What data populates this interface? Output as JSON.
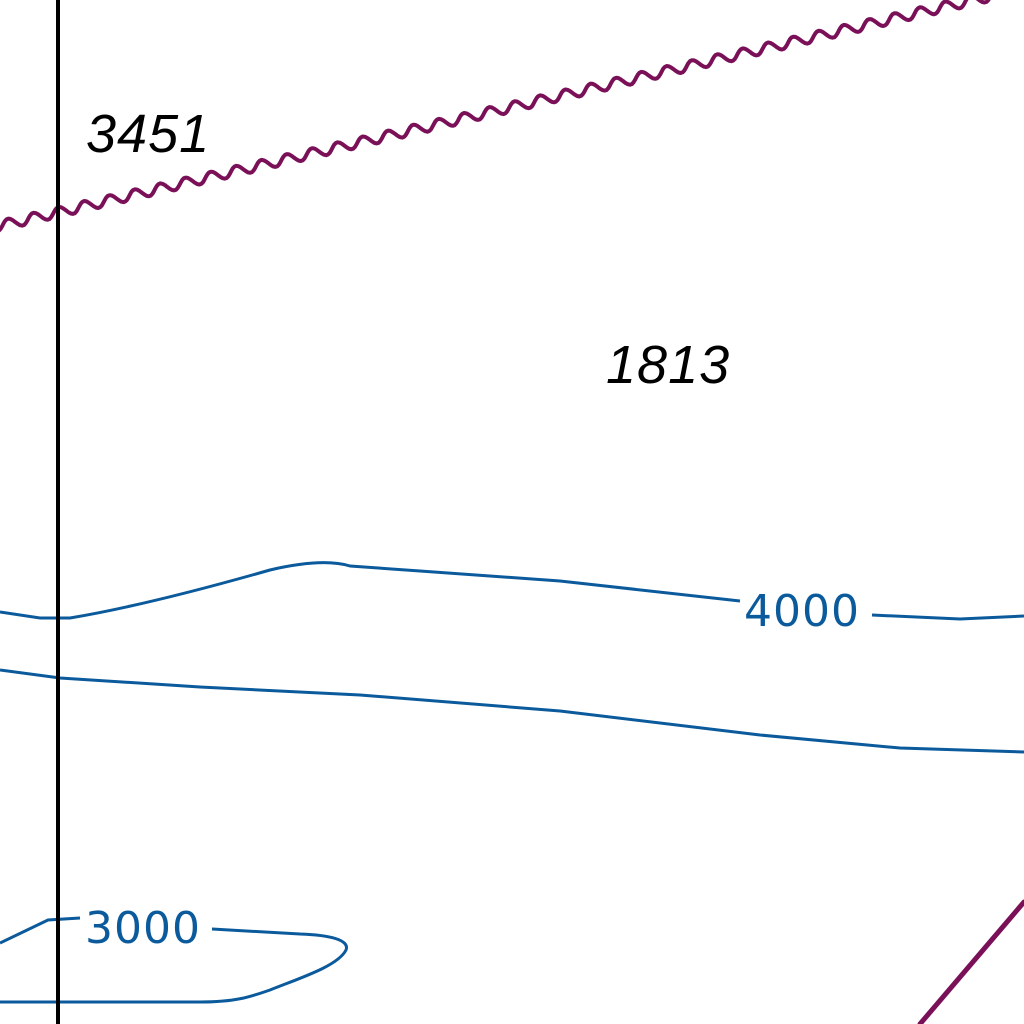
{
  "map": {
    "colors": {
      "background": "#ffffff",
      "spot_text": "#000000",
      "contour": "#0b5a9c",
      "boundary": "#7a1158",
      "grid": "#000000"
    },
    "spot_labels": [
      {
        "id": "spot-3451",
        "text": "3451"
      },
      {
        "id": "spot-1813",
        "text": "1813"
      }
    ],
    "contour_labels": [
      {
        "id": "contour-4000",
        "text": "4000"
      },
      {
        "id": "contour-3000",
        "text": "3000"
      }
    ]
  }
}
